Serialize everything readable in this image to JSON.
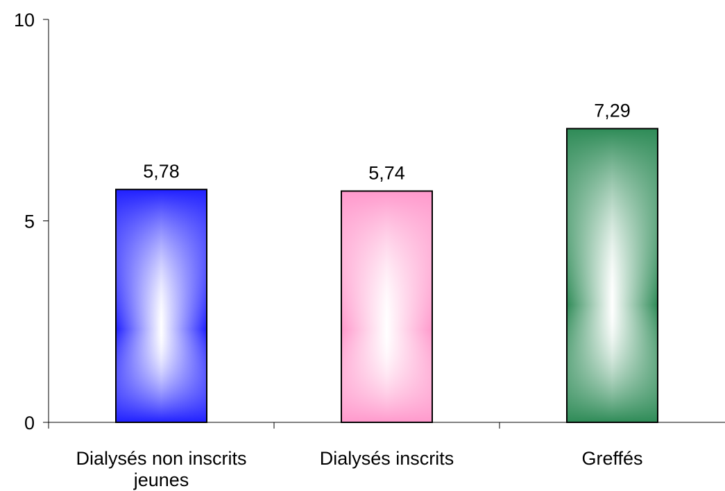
{
  "chart_data": {
    "type": "bar",
    "title": "",
    "xlabel": "",
    "ylabel": "",
    "categories": [
      [
        "Dialysés non inscrits",
        "jeunes"
      ],
      [
        "Dialysés inscrits"
      ],
      [
        "Greffés"
      ]
    ],
    "values": [
      5.78,
      5.74,
      7.29
    ],
    "value_labels": [
      "5,78",
      "5,74",
      "7,29"
    ],
    "ylim": [
      0,
      10
    ],
    "yticks": [
      0,
      5,
      10
    ],
    "ytick_labels": [
      "0",
      "5",
      "10"
    ],
    "grid": false,
    "legend": "none",
    "colors": [
      {
        "edge": "#2020ff",
        "center": "#ffffff"
      },
      {
        "edge": "#ff99cc",
        "center": "#ffffff"
      },
      {
        "edge": "#2e8b57",
        "center": "#ffffff"
      }
    ]
  }
}
